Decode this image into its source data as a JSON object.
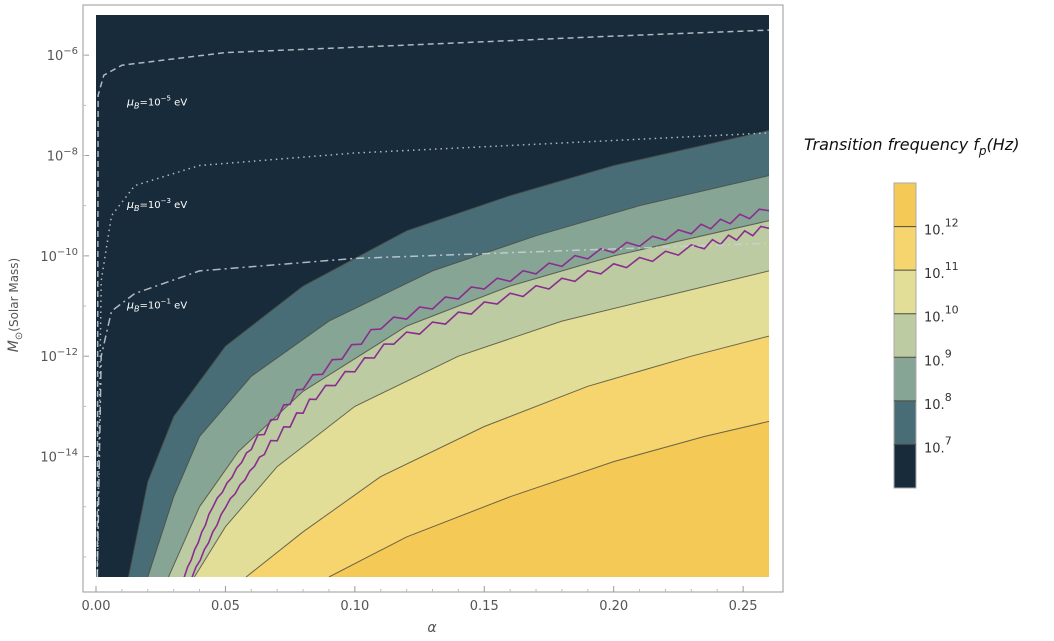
{
  "chart_data": {
    "type": "contour",
    "xlabel": "α",
    "ylabel_main": "M",
    "ylabel_sub": "⊙",
    "ylabel_unit": "(Solar Mass)",
    "xlim": [
      0.0,
      0.26
    ],
    "ylim_log10": [
      -16.4,
      -5.2
    ],
    "y_scale": "log",
    "grid": false,
    "x_ticks": [
      {
        "value": 0.0,
        "label": "0.00"
      },
      {
        "value": 0.05,
        "label": "0.05"
      },
      {
        "value": 0.1,
        "label": "0.10"
      },
      {
        "value": 0.15,
        "label": "0.15"
      },
      {
        "value": 0.2,
        "label": "0.20"
      },
      {
        "value": 0.25,
        "label": "0.25"
      }
    ],
    "y_ticks": [
      {
        "exp": -6,
        "base": "10",
        "sup": "−6"
      },
      {
        "exp": -8,
        "base": "10",
        "sup": "−8"
      },
      {
        "exp": -10,
        "base": "10",
        "sup": "−10"
      },
      {
        "exp": -12,
        "base": "10",
        "sup": "−12"
      },
      {
        "exp": -14,
        "base": "10",
        "sup": "−14"
      }
    ],
    "contour_levels_log10_hz": [
      7,
      8,
      9,
      10,
      11,
      12
    ],
    "contour_lines": [
      {
        "level": 7,
        "points": [
          [
            0.0125,
            -16.4
          ],
          [
            0.02,
            -14.5
          ],
          [
            0.03,
            -13.2
          ],
          [
            0.05,
            -11.8
          ],
          [
            0.08,
            -10.6
          ],
          [
            0.12,
            -9.5
          ],
          [
            0.16,
            -8.8
          ],
          [
            0.2,
            -8.2
          ],
          [
            0.26,
            -7.5
          ]
        ]
      },
      {
        "level": 8,
        "points": [
          [
            0.02,
            -16.4
          ],
          [
            0.03,
            -14.8
          ],
          [
            0.04,
            -13.6
          ],
          [
            0.06,
            -12.4
          ],
          [
            0.09,
            -11.3
          ],
          [
            0.13,
            -10.3
          ],
          [
            0.17,
            -9.6
          ],
          [
            0.21,
            -9.0
          ],
          [
            0.26,
            -8.4
          ]
        ]
      },
      {
        "level": 9,
        "points": [
          [
            0.028,
            -16.4
          ],
          [
            0.04,
            -15.0
          ],
          [
            0.055,
            -13.9
          ],
          [
            0.08,
            -12.7
          ],
          [
            0.12,
            -11.4
          ],
          [
            0.16,
            -10.6
          ],
          [
            0.2,
            -10.0
          ],
          [
            0.26,
            -9.3
          ]
        ]
      },
      {
        "level": 10,
        "points": [
          [
            0.038,
            -16.4
          ],
          [
            0.05,
            -15.4
          ],
          [
            0.07,
            -14.2
          ],
          [
            0.1,
            -13.0
          ],
          [
            0.14,
            -12.0
          ],
          [
            0.18,
            -11.3
          ],
          [
            0.22,
            -10.8
          ],
          [
            0.26,
            -10.3
          ]
        ]
      },
      {
        "level": 11,
        "points": [
          [
            0.058,
            -16.4
          ],
          [
            0.08,
            -15.5
          ],
          [
            0.11,
            -14.4
          ],
          [
            0.15,
            -13.4
          ],
          [
            0.19,
            -12.6
          ],
          [
            0.23,
            -12.0
          ],
          [
            0.26,
            -11.6
          ]
        ]
      },
      {
        "level": 12,
        "points": [
          [
            0.09,
            -16.4
          ],
          [
            0.12,
            -15.6
          ],
          [
            0.16,
            -14.8
          ],
          [
            0.2,
            -14.1
          ],
          [
            0.235,
            -13.6
          ],
          [
            0.26,
            -13.3
          ]
        ]
      }
    ],
    "threshold_lines": [
      {
        "name": "upper",
        "color": "#8b2d8f",
        "points": [
          [
            0.034,
            -16.4
          ],
          [
            0.045,
            -15.0
          ],
          [
            0.06,
            -13.8
          ],
          [
            0.08,
            -12.6
          ],
          [
            0.11,
            -11.4
          ],
          [
            0.15,
            -10.6
          ],
          [
            0.19,
            -10.0
          ],
          [
            0.23,
            -9.5
          ],
          [
            0.26,
            -9.1
          ]
        ]
      },
      {
        "name": "lower",
        "color": "#8b2d8f",
        "points": [
          [
            0.037,
            -16.4
          ],
          [
            0.05,
            -15.0
          ],
          [
            0.065,
            -13.9
          ],
          [
            0.085,
            -12.8
          ],
          [
            0.115,
            -11.7
          ],
          [
            0.155,
            -10.9
          ],
          [
            0.195,
            -10.3
          ],
          [
            0.235,
            -9.8
          ],
          [
            0.26,
            -9.45
          ]
        ]
      }
    ],
    "mass_lines": [
      {
        "label_base": "μ",
        "label_sub": "B",
        "label_eq": "=10",
        "label_exp": "−5",
        "label_unit": " eV",
        "style": "dashed",
        "label_at": [
          0.012,
          -7.0
        ],
        "points": [
          [
            0.0005,
            -16.4
          ],
          [
            0.0008,
            -6.8
          ],
          [
            0.003,
            -6.4
          ],
          [
            0.01,
            -6.2
          ],
          [
            0.05,
            -5.95
          ],
          [
            0.12,
            -5.8
          ],
          [
            0.2,
            -5.62
          ],
          [
            0.26,
            -5.5
          ]
        ]
      },
      {
        "label_base": "μ",
        "label_sub": "B",
        "label_eq": "=10",
        "label_exp": "−3",
        "label_unit": " eV",
        "style": "dotted",
        "label_at": [
          0.012,
          -9.05
        ],
        "points": [
          [
            0.0005,
            -16.4
          ],
          [
            0.002,
            -10.5
          ],
          [
            0.006,
            -9.2
          ],
          [
            0.015,
            -8.6
          ],
          [
            0.04,
            -8.2
          ],
          [
            0.1,
            -7.95
          ],
          [
            0.18,
            -7.75
          ],
          [
            0.26,
            -7.55
          ]
        ]
      },
      {
        "label_base": "μ",
        "label_sub": "B",
        "label_eq": "=10",
        "label_exp": "−1",
        "label_unit": " eV",
        "style": "dashdot",
        "label_at": [
          0.012,
          -11.05
        ],
        "points": [
          [
            0.0005,
            -16.4
          ],
          [
            0.002,
            -12.0
          ],
          [
            0.006,
            -11.1
          ],
          [
            0.015,
            -10.75
          ],
          [
            0.04,
            -10.3
          ],
          [
            0.1,
            -10.05
          ],
          [
            0.18,
            -9.9
          ],
          [
            0.26,
            -9.75
          ]
        ]
      }
    ],
    "legend": {
      "title_main": "Transition frequency f",
      "title_sub": "p",
      "title_unit": "(Hz)",
      "placement": "right",
      "levels": [
        {
          "base": "10.",
          "exp": "12"
        },
        {
          "base": "10.",
          "exp": "11"
        },
        {
          "base": "10.",
          "exp": "10"
        },
        {
          "base": "10.",
          "exp": "9"
        },
        {
          "base": "10.",
          "exp": "8"
        },
        {
          "base": "10.",
          "exp": "7"
        }
      ],
      "colors_bottom_to_top": [
        "#172b3a",
        "#486d77",
        "#87a595",
        "#bdcba2",
        "#e2de98",
        "#f6d56e",
        "#f5c955"
      ]
    }
  }
}
